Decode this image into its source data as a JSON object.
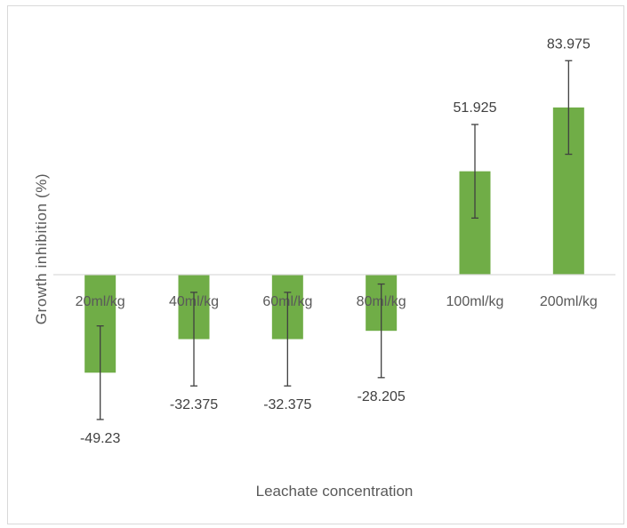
{
  "chart_data": {
    "type": "bar",
    "title": "",
    "xlabel": "Leachate concentration",
    "ylabel": "Growth inhibition (%)",
    "categories": [
      "20ml/kg",
      "40ml/kg",
      "60ml/kg",
      "80ml/kg",
      "100ml/kg",
      "200ml/kg"
    ],
    "series": [
      {
        "values": [
          -49.23,
          -32.375,
          -32.375,
          -28.205,
          51.925,
          83.975
        ],
        "error": [
          23.5,
          23.5,
          23.5,
          23.5,
          23.5,
          23.5
        ],
        "data_labels": [
          "-49.23",
          "-32.375",
          "-32.375",
          "-28.205",
          "51.925",
          "83.975"
        ],
        "color": "#70ad47"
      }
    ],
    "ylim": [
      -70,
      100
    ],
    "grid": false,
    "legend": "none",
    "error_bar_color": "#404040",
    "axis_color": "#d9d9d9"
  }
}
